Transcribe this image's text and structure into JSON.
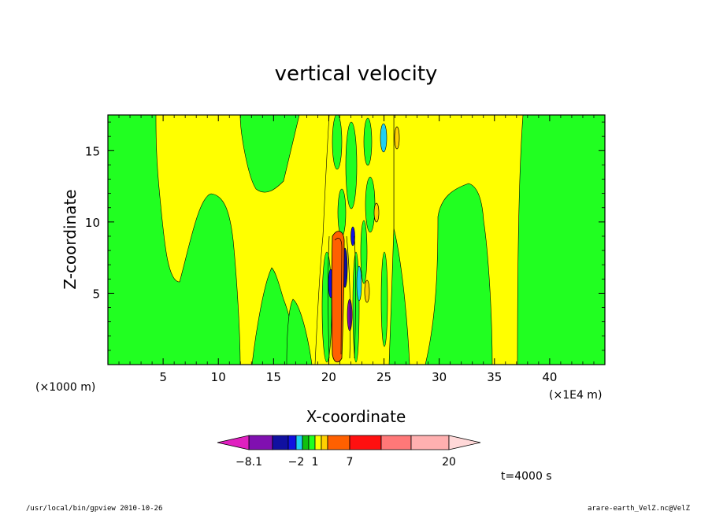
{
  "chart_data": {
    "type": "heatmap",
    "title": "vertical velocity",
    "xlabel": "X-coordinate",
    "ylabel": "Z-coordinate",
    "x_units": "(×1E4 m)",
    "y_units": "(×1000 m)",
    "xlim": [
      0,
      45
    ],
    "ylim": [
      0,
      17.5
    ],
    "x_ticks": [
      5,
      10,
      15,
      20,
      25,
      30,
      35,
      40
    ],
    "y_ticks": [
      5,
      10,
      15
    ],
    "colorbar": {
      "levels": [
        -8.1,
        -6,
        -4,
        -2,
        -1,
        0,
        1,
        2,
        4,
        7,
        10,
        13,
        16,
        20
      ],
      "tick_labels": [
        "−8.1",
        "−2",
        "1",
        "7",
        "20"
      ],
      "colors": [
        "#e020c0",
        "#8010b0",
        "#1010a0",
        "#1010e0",
        "#20d0f0",
        "#10c010",
        "#20ff20",
        "#ffff00",
        "#ffd000",
        "#ff6000",
        "#ff1010",
        "#ff7878",
        "#ffb0b0",
        "#ffd8d8"
      ]
    },
    "regions": [
      {
        "description": "background",
        "level_color": "#21ff21"
      },
      {
        "description": "positive band",
        "level_color": "#ffff00"
      },
      {
        "description": "strong updraft core",
        "level_color": "#ff6000"
      },
      {
        "description": "downdraft cells",
        "level_color": "#20d0f0"
      }
    ],
    "time_label": "t=4000 s"
  },
  "footer": {
    "left": "/usr/local/bin/gpview  2010-10-26",
    "right": "arare-earth_VelZ.nc@VelZ"
  }
}
